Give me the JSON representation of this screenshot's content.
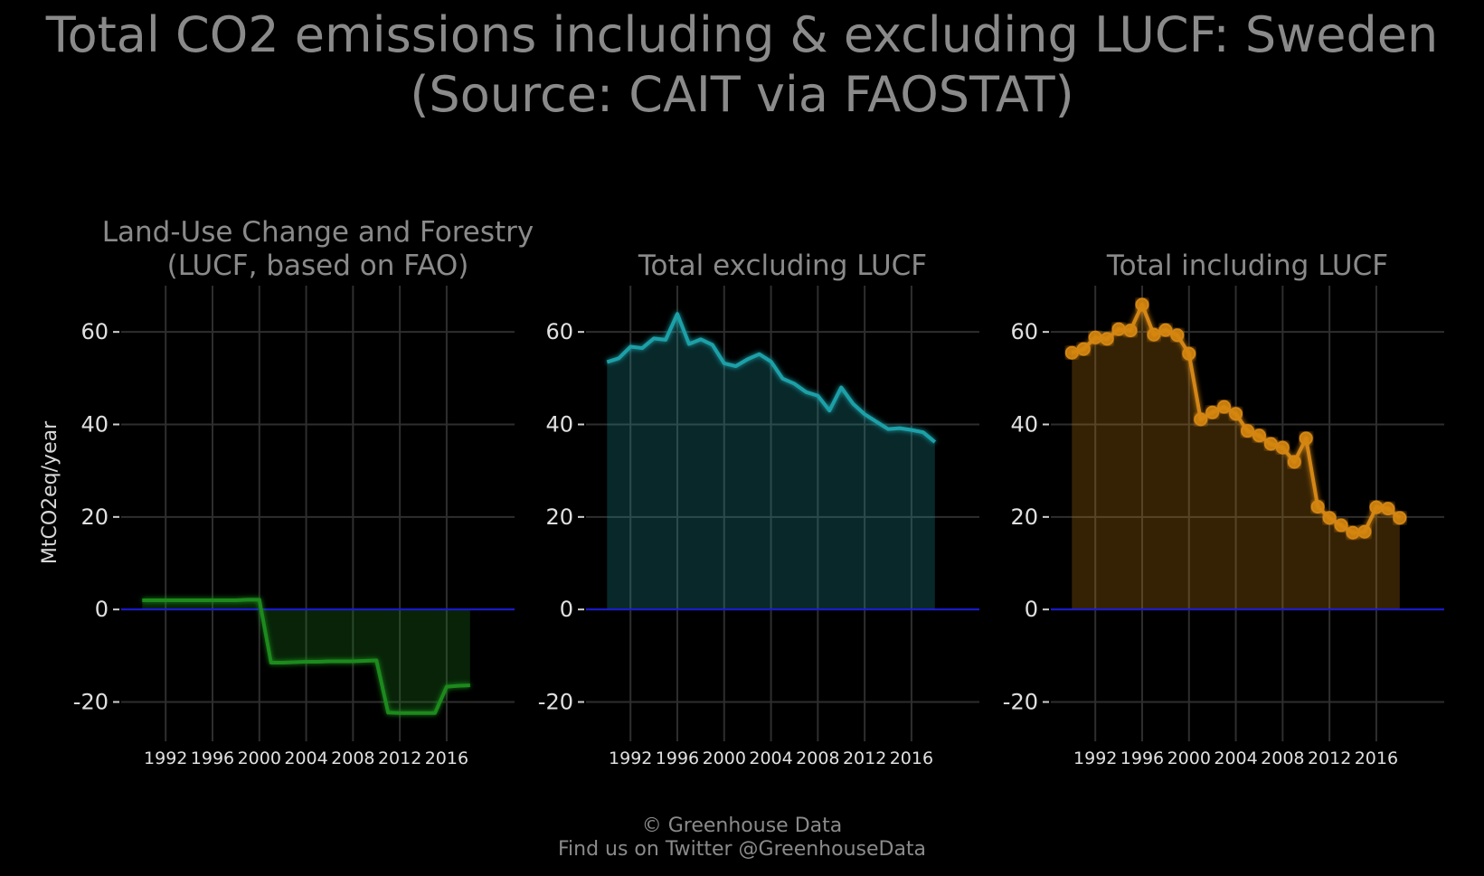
{
  "title": "Total CO2 emissions including & excluding LUCF: Sweden\n(Source: CAIT via FAOSTAT)",
  "ylabel": "MtCO2eq/year",
  "caption": {
    "line1": "© Greenhouse Data",
    "line2": "Find us on Twitter @GreenhouseData"
  },
  "chart_data": [
    {
      "type": "area",
      "title": "Land-Use Change and Forestry\n(LUCF, based on FAO)",
      "color": "#1f8a1f",
      "markers": false,
      "x": [
        1990,
        1991,
        1992,
        1993,
        1994,
        1995,
        1996,
        1997,
        1998,
        1999,
        2000,
        2001,
        2002,
        2003,
        2004,
        2005,
        2006,
        2007,
        2008,
        2009,
        2010,
        2011,
        2012,
        2013,
        2014,
        2015,
        2016,
        2017,
        2018
      ],
      "values": [
        2,
        2,
        2,
        2,
        2,
        2,
        2,
        2,
        2,
        2.1,
        2.1,
        -11.5,
        -11.5,
        -11.4,
        -11.3,
        -11.3,
        -11.2,
        -11.2,
        -11.2,
        -11.1,
        -11,
        -22.3,
        -22.4,
        -22.4,
        -22.4,
        -22.4,
        -16.7,
        -16.5,
        -16.4
      ]
    },
    {
      "type": "area",
      "title": "Total excluding LUCF",
      "color": "#1fa0a8",
      "markers": false,
      "x": [
        1990,
        1991,
        1992,
        1993,
        1994,
        1995,
        1996,
        1997,
        1998,
        1999,
        2000,
        2001,
        2002,
        2003,
        2004,
        2005,
        2006,
        2007,
        2008,
        2009,
        2010,
        2011,
        2012,
        2013,
        2014,
        2015,
        2016,
        2017,
        2018
      ],
      "values": [
        53.5,
        54.3,
        56.8,
        56.5,
        58.6,
        58.3,
        63.9,
        57.4,
        58.4,
        57.2,
        53.2,
        52.6,
        54.1,
        55.2,
        53.6,
        49.9,
        48.8,
        47,
        46.2,
        43,
        48,
        44.5,
        42.2,
        40.6,
        39,
        39.2,
        38.8,
        38.3,
        36.2
      ]
    },
    {
      "type": "area",
      "title": "Total including LUCF",
      "color": "#d48612",
      "markers": true,
      "x": [
        1990,
        1991,
        1992,
        1993,
        1994,
        1995,
        1996,
        1997,
        1998,
        1999,
        2000,
        2001,
        2002,
        2003,
        2004,
        2005,
        2006,
        2007,
        2008,
        2009,
        2010,
        2011,
        2012,
        2013,
        2014,
        2015,
        2016,
        2017,
        2018
      ],
      "values": [
        55.5,
        56.3,
        58.8,
        58.5,
        60.6,
        60.3,
        65.9,
        59.4,
        60.4,
        59.3,
        55.3,
        41.1,
        42.6,
        43.8,
        42.3,
        38.6,
        37.6,
        35.8,
        35,
        31.9,
        37,
        22.2,
        19.8,
        18.2,
        16.6,
        16.8,
        22.1,
        21.8,
        19.8
      ]
    }
  ],
  "axes": {
    "xlim": [
      1988.2,
      2021.8
    ],
    "ylim": [
      -28.5,
      70
    ],
    "xticks": [
      1992,
      1996,
      2000,
      2004,
      2008,
      2012,
      2016
    ],
    "yticks": [
      60,
      40,
      20,
      0,
      -20
    ],
    "ytick_labels": [
      "60",
      "40",
      "20",
      "0",
      "‑20"
    ],
    "grid": true,
    "zero_line_color": "#1a1ad8"
  }
}
